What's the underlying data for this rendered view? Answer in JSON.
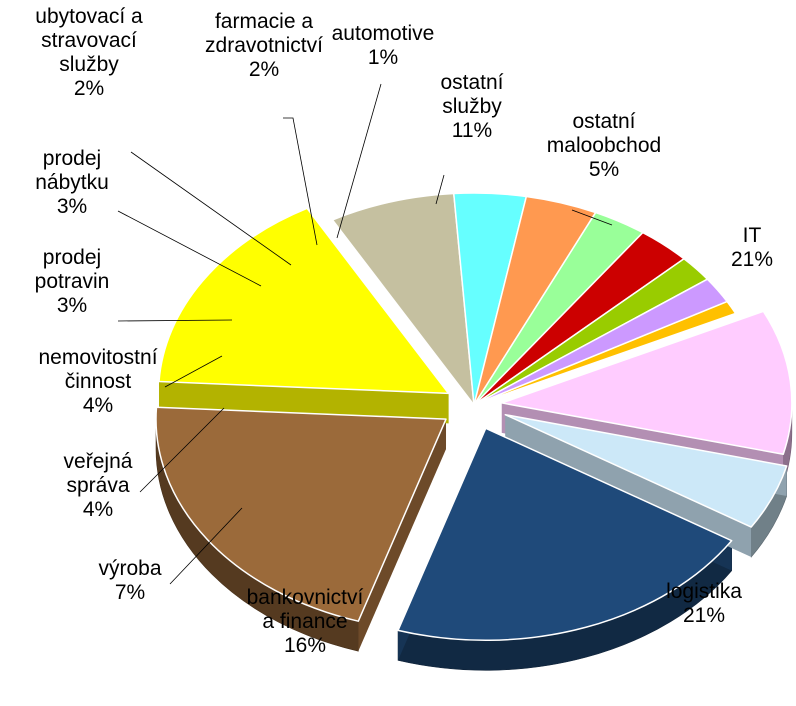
{
  "chart_data": {
    "type": "pie",
    "title": "",
    "legend": "none (labels beside slices)",
    "slices": [
      {
        "name": "IT",
        "label_lines": [
          "IT"
        ],
        "value": 21,
        "value_label": "21%",
        "color": "#1f4a7a"
      },
      {
        "name": "logistika",
        "label_lines": [
          "logistika"
        ],
        "value": 21,
        "value_label": "21%",
        "color": "#9b6a3a"
      },
      {
        "name": "bankovnictví a finance",
        "label_lines": [
          "bankovnictví",
          "a finance"
        ],
        "value": 16,
        "value_label": "16%",
        "color": "#ffff00"
      },
      {
        "name": "výroba",
        "label_lines": [
          "výroba"
        ],
        "value": 7,
        "value_label": "7%",
        "color": "#c5c0a0"
      },
      {
        "name": "veřejná správa",
        "label_lines": [
          "veřejná",
          "správa"
        ],
        "value": 4,
        "value_label": "4%",
        "color": "#66ffff"
      },
      {
        "name": "nemovitostní činnost",
        "label_lines": [
          "nemovitostní",
          "činnost"
        ],
        "value": 4,
        "value_label": "4%",
        "color": "#ff9950"
      },
      {
        "name": "prodej potravin",
        "label_lines": [
          "prodej",
          "potravin"
        ],
        "value": 3,
        "value_label": "3%",
        "color": "#99ff99"
      },
      {
        "name": "prodej nábytku",
        "label_lines": [
          "prodej",
          "nábytku"
        ],
        "value": 3,
        "value_label": "3%",
        "color": "#cc0000"
      },
      {
        "name": "ubytovací a stravovací služby",
        "label_lines": [
          "ubytovací a",
          "stravovací",
          "služby"
        ],
        "value": 2,
        "value_label": "2%",
        "color": "#99cc00"
      },
      {
        "name": "farmacie a zdravotnictví",
        "label_lines": [
          "farmacie a",
          "zdravotnictví"
        ],
        "value": 2,
        "value_label": "2%",
        "color": "#cc99ff"
      },
      {
        "name": "automotive",
        "label_lines": [
          "automotive"
        ],
        "value": 1,
        "value_label": "1%",
        "color": "#ffc000"
      },
      {
        "name": "ostatní služby",
        "label_lines": [
          "ostatní",
          "služby"
        ],
        "value": 11,
        "value_label": "11%",
        "color": "#ffccff"
      },
      {
        "name": "ostatní maloobchod",
        "label_lines": [
          "ostatní",
          "maloobchod"
        ],
        "value": 5,
        "value_label": "5%",
        "color": "#cce8f8"
      }
    ]
  }
}
